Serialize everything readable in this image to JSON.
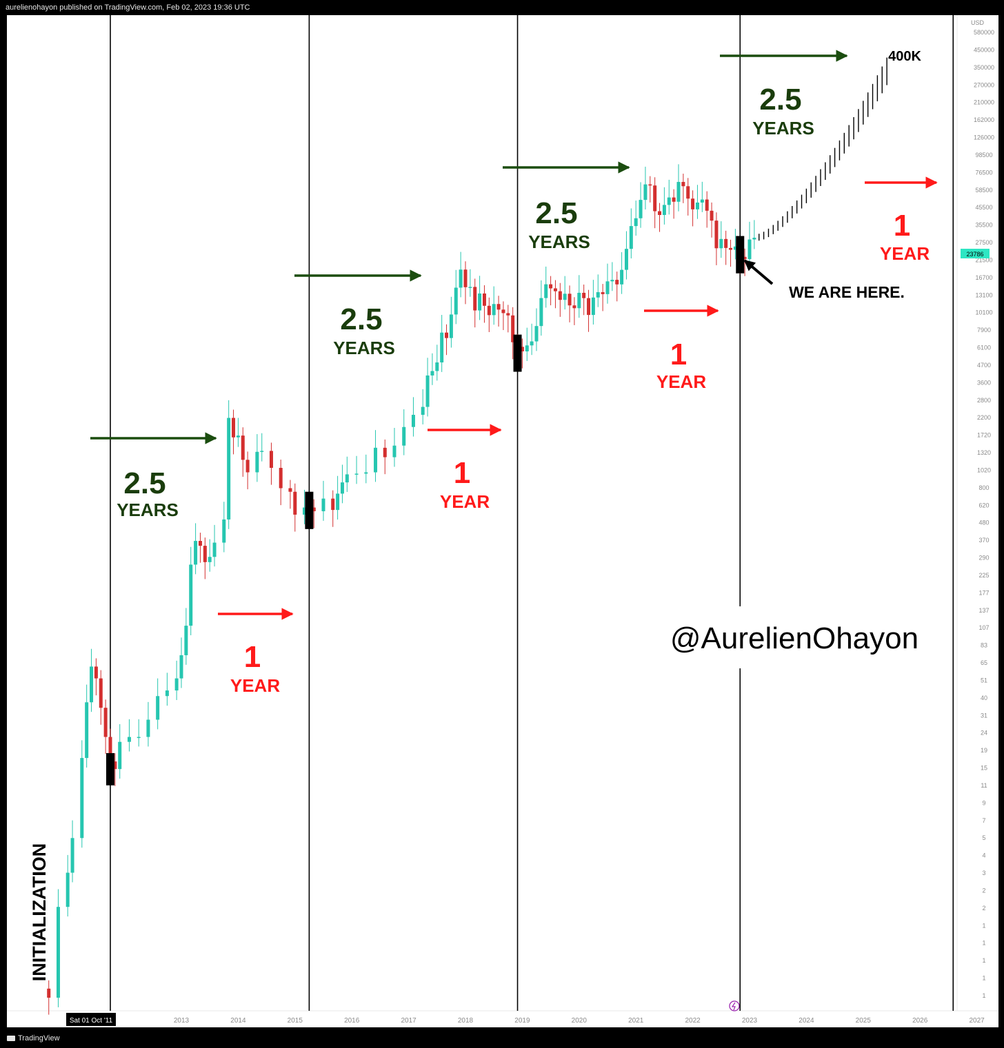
{
  "header": {
    "publisher_line": "aurelienohayon published on TradingView.com, Feb 02, 2023 19:36 UTC"
  },
  "footer": {
    "logo_text": "TradingView"
  },
  "price_axis": {
    "currency": "USD",
    "labels": [
      "580000",
      "450000",
      "350000",
      "270000",
      "210000",
      "162000",
      "126000",
      "98500",
      "76500",
      "58500",
      "45500",
      "35500",
      "27500",
      "21500",
      "16700",
      "13100",
      "10100",
      "7900",
      "6100",
      "4700",
      "3600",
      "2800",
      "2200",
      "1720",
      "1320",
      "1020",
      "800",
      "620",
      "480",
      "370",
      "290",
      "225",
      "177",
      "137",
      "107",
      "83",
      "65",
      "51",
      "40",
      "31",
      "24",
      "19",
      "15",
      "11",
      "9",
      "7",
      "5",
      "4",
      "3",
      "2",
      "2",
      "1",
      "1",
      "1",
      "1",
      "1"
    ],
    "current_price": "23786"
  },
  "time_axis": {
    "labels": [
      "2011",
      "2013",
      "2014",
      "2015",
      "2016",
      "2017",
      "2018",
      "2019",
      "2020",
      "2021",
      "2022",
      "2023",
      "2024",
      "2025",
      "2026",
      "2027"
    ],
    "crosshair_label": "Sat 01 Oct '11"
  },
  "annotations": {
    "cycle_top_value": "2.5",
    "cycle_top_unit": "YEARS",
    "cycle_bottom_value": "1",
    "cycle_bottom_unit": "YEAR",
    "initialization": "INITIALIZATION",
    "we_are_here": "WE ARE HERE.",
    "target": "400K",
    "watermark": "@AurelienOhayon"
  },
  "colors": {
    "up": "#26c6b0",
    "down": "#d32f2f",
    "arrow_green": "#1b4d0f",
    "arrow_red": "#ff1a1a",
    "text_green": "#1a3d0c",
    "text_red": "#ff1a1a",
    "axis_text": "#8a8a8a",
    "current_badge": "#2ee6c3"
  },
  "chart_data": {
    "type": "candlestick",
    "interval": "1M",
    "scale": "log",
    "ylim": [
      0.06,
      650000
    ],
    "xlim": [
      "2010-08",
      "2027-06"
    ],
    "cycle_lines": [
      "2011-10",
      "2015-04",
      "2018-12",
      "2022-11",
      "2026-08"
    ],
    "prices_approx": [
      {
        "t": "2010-07",
        "close": 0.07
      },
      {
        "t": "2010-09",
        "close": 0.06
      },
      {
        "t": "2010-11",
        "close": 0.28
      },
      {
        "t": "2011-01",
        "close": 0.5
      },
      {
        "t": "2011-02",
        "close": 0.9
      },
      {
        "t": "2011-04",
        "close": 3.5
      },
      {
        "t": "2011-05",
        "close": 9
      },
      {
        "t": "2011-06",
        "close": 16.5
      },
      {
        "t": "2011-07",
        "close": 13.5
      },
      {
        "t": "2011-08",
        "close": 8.2
      },
      {
        "t": "2011-09",
        "close": 5
      },
      {
        "t": "2011-10",
        "close": 3.3
      },
      {
        "t": "2011-11",
        "close": 2.9
      },
      {
        "t": "2011-12",
        "close": 4.6
      },
      {
        "t": "2012-02",
        "close": 5
      },
      {
        "t": "2012-04",
        "close": 5
      },
      {
        "t": "2012-06",
        "close": 6.7
      },
      {
        "t": "2012-08",
        "close": 10
      },
      {
        "t": "2012-10",
        "close": 11
      },
      {
        "t": "2012-12",
        "close": 13.5
      },
      {
        "t": "2013-01",
        "close": 20
      },
      {
        "t": "2013-02",
        "close": 33
      },
      {
        "t": "2013-03",
        "close": 93
      },
      {
        "t": "2013-04",
        "close": 139
      },
      {
        "t": "2013-05",
        "close": 128
      },
      {
        "t": "2013-06",
        "close": 97
      },
      {
        "t": "2013-07",
        "close": 106
      },
      {
        "t": "2013-08",
        "close": 135
      },
      {
        "t": "2013-10",
        "close": 200
      },
      {
        "t": "2013-11",
        "close": 1120
      },
      {
        "t": "2013-12",
        "close": 805
      },
      {
        "t": "2014-01",
        "close": 830
      },
      {
        "t": "2014-02",
        "close": 550
      },
      {
        "t": "2014-03",
        "close": 445
      },
      {
        "t": "2014-05",
        "close": 630
      },
      {
        "t": "2014-06",
        "close": 640
      },
      {
        "t": "2014-08",
        "close": 480
      },
      {
        "t": "2014-10",
        "close": 340
      },
      {
        "t": "2014-12",
        "close": 320
      },
      {
        "t": "2015-01",
        "close": 217
      },
      {
        "t": "2015-03",
        "close": 245
      },
      {
        "t": "2015-05",
        "close": 230
      },
      {
        "t": "2015-07",
        "close": 285
      },
      {
        "t": "2015-09",
        "close": 235
      },
      {
        "t": "2015-10",
        "close": 310
      },
      {
        "t": "2015-11",
        "close": 375
      },
      {
        "t": "2015-12",
        "close": 430
      },
      {
        "t": "2016-02",
        "close": 435
      },
      {
        "t": "2016-04",
        "close": 445
      },
      {
        "t": "2016-06",
        "close": 675
      },
      {
        "t": "2016-08",
        "close": 575
      },
      {
        "t": "2016-10",
        "close": 700
      },
      {
        "t": "2016-12",
        "close": 960
      },
      {
        "t": "2017-02",
        "close": 1180
      },
      {
        "t": "2017-04",
        "close": 1350
      },
      {
        "t": "2017-05",
        "close": 2300
      },
      {
        "t": "2017-06",
        "close": 2480
      },
      {
        "t": "2017-07",
        "close": 2870
      },
      {
        "t": "2017-08",
        "close": 4760
      },
      {
        "t": "2017-09",
        "close": 4340
      },
      {
        "t": "2017-10",
        "close": 6470
      },
      {
        "t": "2017-11",
        "close": 10200
      },
      {
        "t": "2017-12",
        "close": 13860
      },
      {
        "t": "2018-01",
        "close": 10280
      },
      {
        "t": "2018-02",
        "close": 10330
      },
      {
        "t": "2018-03",
        "close": 6930
      },
      {
        "t": "2018-04",
        "close": 9240
      },
      {
        "t": "2018-05",
        "close": 7500
      },
      {
        "t": "2018-06",
        "close": 6400
      },
      {
        "t": "2018-07",
        "close": 7730
      },
      {
        "t": "2018-08",
        "close": 7030
      },
      {
        "t": "2018-09",
        "close": 6625
      },
      {
        "t": "2018-10",
        "close": 6370
      },
      {
        "t": "2018-11",
        "close": 4040
      },
      {
        "t": "2018-12",
        "close": 3740
      },
      {
        "t": "2019-01",
        "close": 3460
      },
      {
        "t": "2019-02",
        "close": 3830
      },
      {
        "t": "2019-03",
        "close": 4100
      },
      {
        "t": "2019-04",
        "close": 5320
      },
      {
        "t": "2019-05",
        "close": 8550
      },
      {
        "t": "2019-06",
        "close": 10800
      },
      {
        "t": "2019-07",
        "close": 10080
      },
      {
        "t": "2019-08",
        "close": 9600
      },
      {
        "t": "2019-09",
        "close": 8290
      },
      {
        "t": "2019-10",
        "close": 9200
      },
      {
        "t": "2019-11",
        "close": 7550
      },
      {
        "t": "2019-12",
        "close": 7200
      },
      {
        "t": "2020-01",
        "close": 9350
      },
      {
        "t": "2020-02",
        "close": 8540
      },
      {
        "t": "2020-03",
        "close": 6420
      },
      {
        "t": "2020-04",
        "close": 8630
      },
      {
        "t": "2020-05",
        "close": 9450
      },
      {
        "t": "2020-06",
        "close": 9140
      },
      {
        "t": "2020-07",
        "close": 11350
      },
      {
        "t": "2020-08",
        "close": 11650
      },
      {
        "t": "2020-09",
        "close": 10780
      },
      {
        "t": "2020-10",
        "close": 13800
      },
      {
        "t": "2020-11",
        "close": 19700
      },
      {
        "t": "2020-12",
        "close": 28990
      },
      {
        "t": "2021-01",
        "close": 33100
      },
      {
        "t": "2021-02",
        "close": 45200
      },
      {
        "t": "2021-03",
        "close": 58800
      },
      {
        "t": "2021-04",
        "close": 57700
      },
      {
        "t": "2021-05",
        "close": 37300
      },
      {
        "t": "2021-06",
        "close": 35000
      },
      {
        "t": "2021-07",
        "close": 41500
      },
      {
        "t": "2021-08",
        "close": 47100
      },
      {
        "t": "2021-09",
        "close": 43800
      },
      {
        "t": "2021-10",
        "close": 61300
      },
      {
        "t": "2021-11",
        "close": 57000
      },
      {
        "t": "2021-12",
        "close": 46200
      },
      {
        "t": "2022-01",
        "close": 38500
      },
      {
        "t": "2022-02",
        "close": 43200
      },
      {
        "t": "2022-03",
        "close": 45500
      },
      {
        "t": "2022-04",
        "close": 37600
      },
      {
        "t": "2022-05",
        "close": 31800
      },
      {
        "t": "2022-06",
        "close": 19900
      },
      {
        "t": "2022-07",
        "close": 23300
      },
      {
        "t": "2022-08",
        "close": 20000
      },
      {
        "t": "2022-09",
        "close": 19400
      },
      {
        "t": "2022-10",
        "close": 20500
      },
      {
        "t": "2022-11",
        "close": 17200
      },
      {
        "t": "2022-12",
        "close": 16550
      },
      {
        "t": "2023-01",
        "close": 23100
      },
      {
        "t": "2023-02",
        "close": 23786
      }
    ],
    "projection": {
      "from": "2023-03",
      "to": "2025-06",
      "start": 24000,
      "end": 400000
    }
  }
}
